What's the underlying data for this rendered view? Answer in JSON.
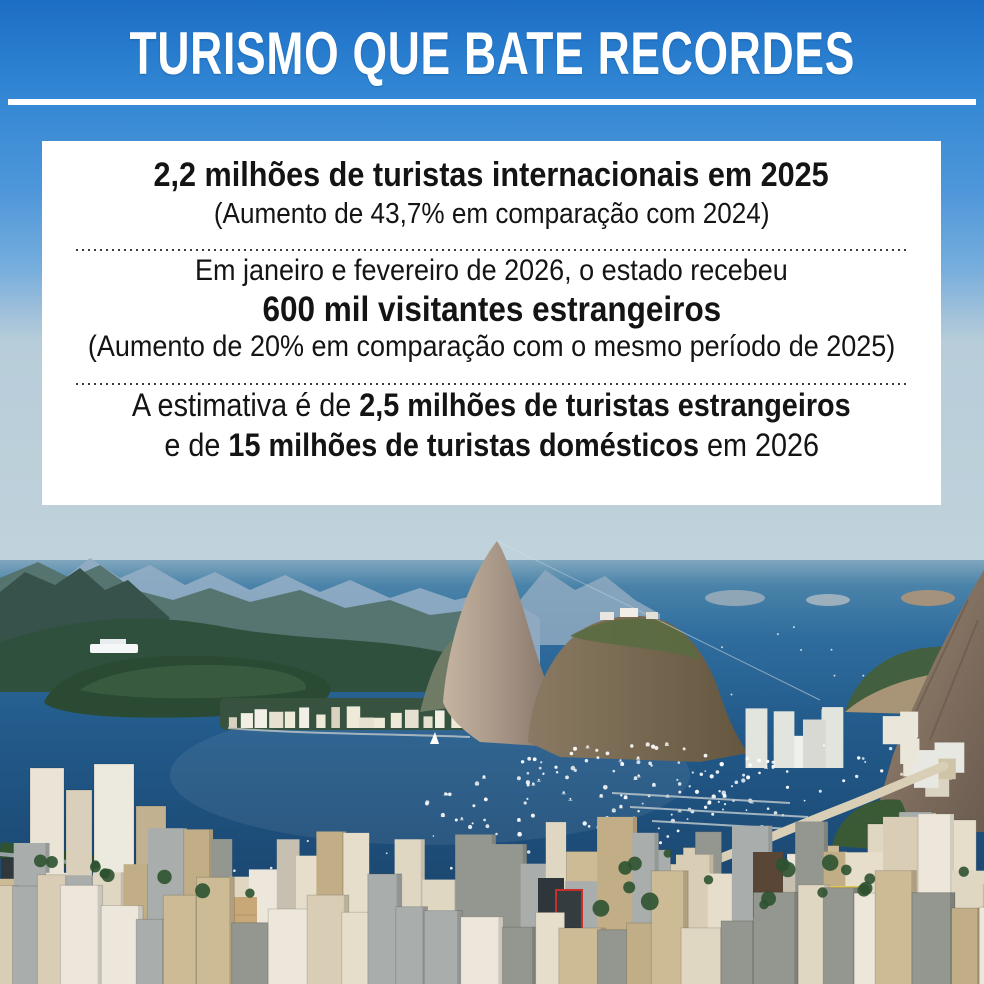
{
  "header": {
    "title": "TURISMO QUE BATE RECORDES"
  },
  "infobox": {
    "block1": {
      "headline": "2,2 milhões de turistas internacionais em 2025",
      "subline": "(Aumento de 43,7% em comparação com 2024)"
    },
    "block2": {
      "line1": "Em janeiro e fevereiro de 2026, o estado recebeu",
      "line2": "600 mil visitantes estrangeiros",
      "line3": "(Aumento de 20% em comparação com o mesmo período de 2025)"
    },
    "block3": {
      "l1_prefix": "A estimativa é de ",
      "l1_bold": "2,5 milhões de turistas estrangeiros",
      "l2_prefix": "e de ",
      "l2_bold": "15 milhões de turistas domésticos",
      "l2_suffix": " em 2026"
    }
  },
  "colors": {
    "sky_blue": "#1d74c9",
    "panel_white": "#ffffff",
    "text_black": "#141414",
    "bay_blue": "#1d4d79",
    "sand": "#d8cfb6"
  }
}
